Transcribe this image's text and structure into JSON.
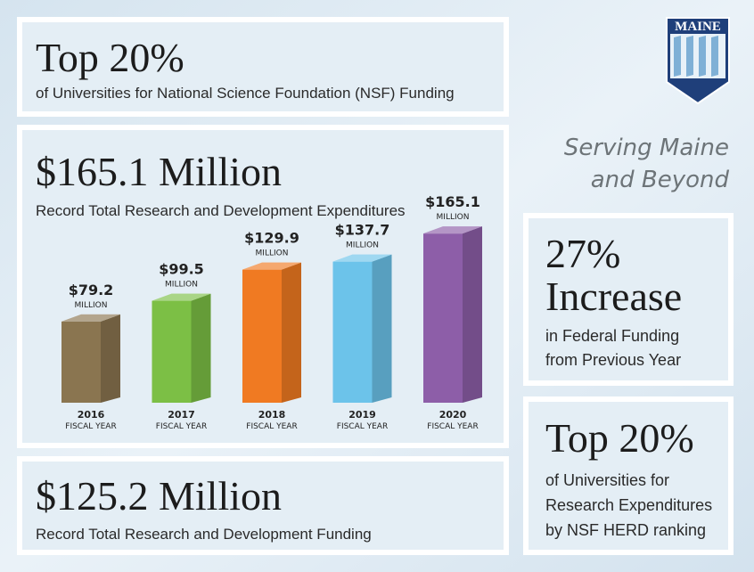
{
  "logo": {
    "text": "MAINE"
  },
  "tagline": [
    "Serving Maine",
    "and Beyond"
  ],
  "panels": {
    "nsf": {
      "title": "Top 20%",
      "text": "of Universities for National Science Foundation (NSF) Funding"
    },
    "expenditures": {
      "title": "$165.1 Million",
      "text": "Record Total Research and Development Expenditures"
    },
    "funding": {
      "title": "$125.2 Million",
      "text": "Record Total Research and Development Funding"
    },
    "increase": {
      "title": [
        "27%",
        "Increase"
      ],
      "text": [
        "in Federal Funding",
        "from Previous Year"
      ]
    },
    "herd": {
      "title": "Top 20%",
      "text": [
        "of Universities for",
        "Research Expenditures",
        "by NSF HERD ranking"
      ]
    }
  },
  "chart_data": {
    "type": "bar",
    "categories": [
      "2016",
      "2017",
      "2018",
      "2019",
      "2020"
    ],
    "category_note": "FISCAL YEAR",
    "values": [
      79.2,
      99.5,
      129.9,
      137.7,
      165.1
    ],
    "value_labels": [
      "$79.2",
      "$99.5",
      "$129.9",
      "$137.7",
      "$165.1"
    ],
    "value_unit": "MILLION",
    "colors": [
      "#8a7550",
      "#7cbf45",
      "#f07a22",
      "#6cc3ea",
      "#8d5ea8"
    ]
  }
}
